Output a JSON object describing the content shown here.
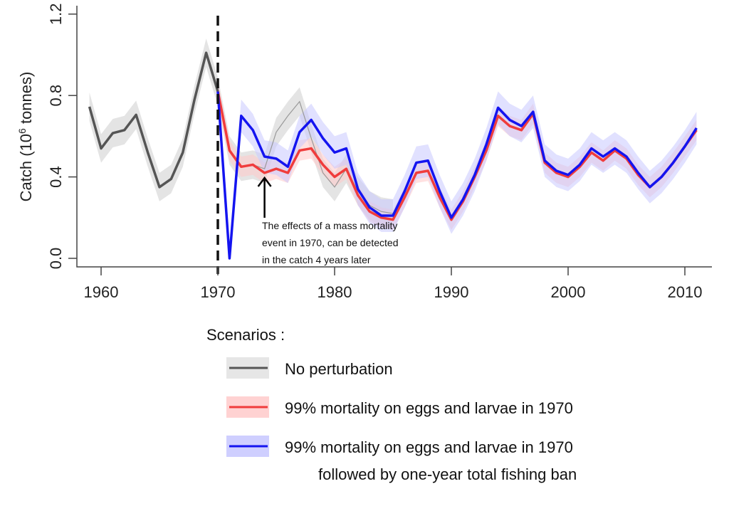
{
  "chart_data": {
    "type": "line",
    "title": "",
    "xlabel": "",
    "ylabel": "Catch (10",
    "ylabel_sup": "6",
    "ylabel_end": " tonnes)",
    "xlim": [
      1958,
      2013
    ],
    "ylim": [
      0,
      1.2
    ],
    "xticks": [
      1960,
      1970,
      1980,
      1990,
      2000,
      2010
    ],
    "yticks": [
      0.0,
      0.4,
      0.8,
      1.2
    ],
    "ytick_labels": [
      "0.0",
      "0.4",
      "0.8",
      "1.2"
    ],
    "event_year": 1970,
    "legend_title": "Scenarios :",
    "legend_placement": "bottom",
    "annotation": {
      "year": 1974,
      "lines": [
        "The effects of a mass mortality",
        "event in 1970, can be detected",
        "in the catch 4 years later"
      ]
    },
    "series": [
      {
        "name": "No perturbation",
        "color": "#555555",
        "band_color": "#d9d9d9",
        "x": [
          1959,
          1960,
          1961,
          1962,
          1963,
          1964,
          1965,
          1966,
          1967,
          1968,
          1969,
          1970,
          1971,
          1972,
          1973,
          1974,
          1975,
          1976,
          1977,
          1978,
          1979,
          1980,
          1981,
          1982,
          1983,
          1984,
          1985
        ],
        "values": [
          0.745,
          0.54,
          0.615,
          0.63,
          0.705,
          0.52,
          0.35,
          0.39,
          0.52,
          0.78,
          1.01,
          0.82,
          0.53,
          0.45,
          0.46,
          0.44,
          0.62,
          0.7,
          0.77,
          0.59,
          0.42,
          0.35,
          0.44,
          0.33,
          0.26,
          0.23,
          0.22
        ],
        "band": 0.07
      },
      {
        "name": "99% mortality on eggs and larvae in 1970",
        "color": "#f03c3c",
        "band_color": "#ffc8c8",
        "x": [
          1970,
          1971,
          1972,
          1973,
          1974,
          1975,
          1976,
          1977,
          1978,
          1979,
          1980,
          1981,
          1982,
          1983,
          1984,
          1985,
          1986,
          1987,
          1988,
          1989,
          1990,
          1991,
          1992,
          1993,
          1994,
          1995,
          1996,
          1997,
          1998,
          1999,
          2000,
          2001,
          2002,
          2003,
          2004,
          2005,
          2006,
          2007,
          2008,
          2009,
          2010,
          2011
        ],
        "values": [
          0.82,
          0.53,
          0.45,
          0.46,
          0.42,
          0.44,
          0.42,
          0.53,
          0.54,
          0.46,
          0.4,
          0.44,
          0.31,
          0.23,
          0.2,
          0.19,
          0.3,
          0.42,
          0.43,
          0.3,
          0.19,
          0.28,
          0.4,
          0.53,
          0.7,
          0.65,
          0.63,
          0.71,
          0.47,
          0.42,
          0.4,
          0.45,
          0.52,
          0.48,
          0.53,
          0.49,
          0.41,
          0.35,
          0.4,
          0.47,
          0.55,
          0.63
        ],
        "band": 0.05
      },
      {
        "name": "99% mortality on eggs and larvae in 1970",
        "name_line2": "followed by one-year total fishing ban",
        "color": "#1414f0",
        "band_color": "#c8c8ff",
        "x": [
          1970,
          1971,
          1972,
          1973,
          1974,
          1975,
          1976,
          1977,
          1978,
          1979,
          1980,
          1981,
          1982,
          1983,
          1984,
          1985,
          1986,
          1987,
          1988,
          1989,
          1990,
          1991,
          1992,
          1993,
          1994,
          1995,
          1996,
          1997,
          1998,
          1999,
          2000,
          2001,
          2002,
          2003,
          2004,
          2005,
          2006,
          2007,
          2008,
          2009,
          2010,
          2011
        ],
        "values": [
          0.82,
          0.0,
          0.7,
          0.63,
          0.5,
          0.49,
          0.45,
          0.62,
          0.68,
          0.59,
          0.52,
          0.54,
          0.34,
          0.25,
          0.21,
          0.21,
          0.33,
          0.47,
          0.48,
          0.33,
          0.2,
          0.29,
          0.41,
          0.56,
          0.74,
          0.68,
          0.65,
          0.72,
          0.48,
          0.43,
          0.41,
          0.46,
          0.54,
          0.5,
          0.54,
          0.5,
          0.42,
          0.35,
          0.4,
          0.47,
          0.55,
          0.64
        ],
        "band": 0.08
      }
    ]
  }
}
